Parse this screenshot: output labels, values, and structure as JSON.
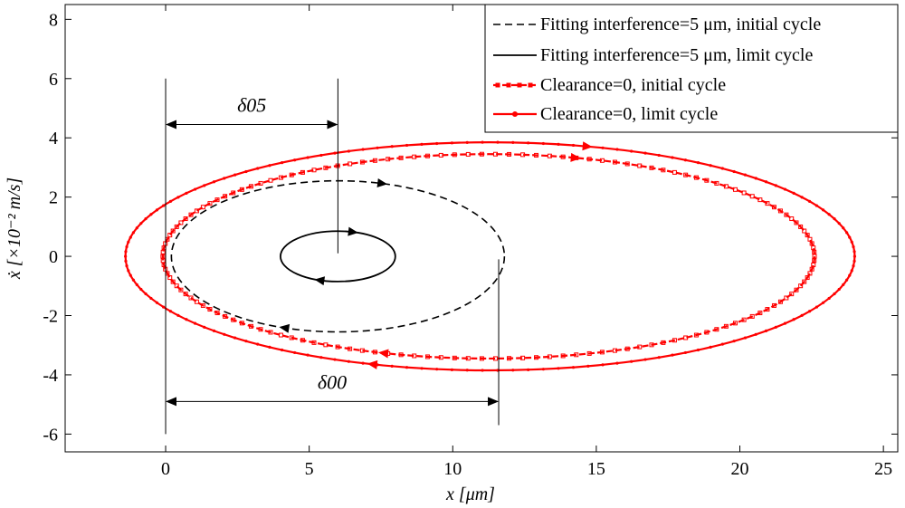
{
  "chart_data": {
    "type": "line",
    "title": "",
    "xlabel": "x  [μm]",
    "ylabel": "ẋ  [×10⁻² m/s]",
    "xlim": [
      -3.5,
      25.5
    ],
    "ylim": [
      -6.6,
      8.5
    ],
    "xticks": [
      0,
      5,
      10,
      15,
      20,
      25
    ],
    "yticks": [
      -6,
      -4,
      -2,
      0,
      2,
      4,
      6,
      8
    ],
    "grid": false,
    "legend_position": "top-right",
    "series": [
      {
        "name": "Fitting interference=5 μm, initial cycle",
        "style": "dashed",
        "color": "#000000",
        "shape": "ellipse",
        "center": [
          6.0,
          0.0
        ],
        "x_semi_axis": 5.8,
        "y_semi_axis": 2.55,
        "x_range": [
          0.2,
          11.8
        ],
        "y_range": [
          -2.55,
          2.55
        ]
      },
      {
        "name": "Fitting interference=5 μm, limit cycle",
        "style": "solid",
        "color": "#000000",
        "shape": "ellipse",
        "center": [
          6.0,
          0.0
        ],
        "x_semi_axis": 2.0,
        "y_semi_axis": 0.85,
        "x_range": [
          4.0,
          8.0
        ],
        "y_range": [
          -0.85,
          0.85
        ]
      },
      {
        "name": "Clearance=0, initial cycle",
        "style": "dashed-square-markers",
        "color": "#ff0000",
        "shape": "ellipse",
        "center": [
          11.25,
          0.0
        ],
        "x_semi_axis": 11.35,
        "y_semi_axis": 3.45,
        "x_range": [
          -0.1,
          22.6
        ],
        "y_range": [
          -3.45,
          3.45
        ]
      },
      {
        "name": "Clearance=0, limit cycle",
        "style": "solid-dot-markers",
        "color": "#ff0000",
        "shape": "ellipse",
        "center": [
          11.3,
          0.0
        ],
        "x_semi_axis": 12.7,
        "y_semi_axis": 3.85,
        "x_range": [
          -1.4,
          24.0
        ],
        "y_range": [
          -3.85,
          3.85
        ]
      }
    ],
    "annotations": [
      {
        "label": "δ05",
        "from_x": 0,
        "to_x": 6.0
      },
      {
        "label": "δ00",
        "from_x": 0,
        "to_x": 11.6
      }
    ]
  }
}
